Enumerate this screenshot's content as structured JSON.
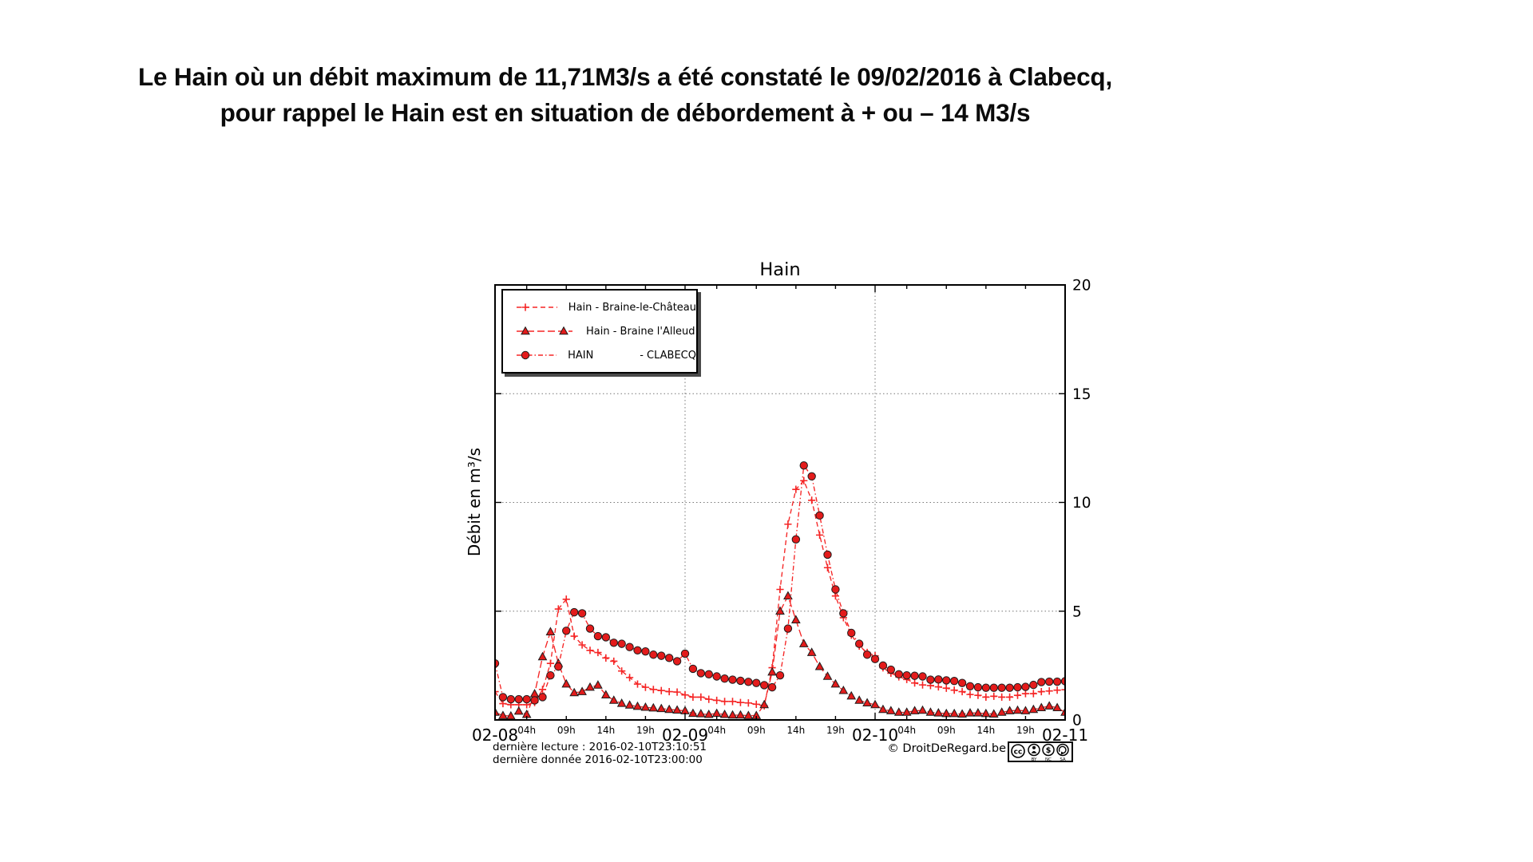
{
  "header": {
    "line1": "Le Hain où un débit maximum de 11,71M3/s a été constaté le 09/02/2016 à Clabecq,",
    "line2": "pour rappel le Hain est en situation de débordement à + ou – 14 M3/s"
  },
  "chart_data": {
    "type": "line",
    "title": "Hain",
    "ylabel": "Débit en m³/s",
    "ylim": [
      0,
      20
    ],
    "yticks": [
      0,
      5,
      10,
      15,
      20
    ],
    "ytick_labels": [
      "0",
      "5",
      "10",
      "15",
      "20"
    ],
    "ytick_side": "right",
    "grid": "dotted horizontal at 5/10/15, dotted vertical at day boundaries",
    "legend_position": "upper left",
    "x_start": "2016-02-08 00:00",
    "x_step_hours": 1,
    "xlim_hours": [
      0,
      72
    ],
    "day_labels": [
      "02-08",
      "02-09",
      "02-10",
      "02-11"
    ],
    "hour_labels": [
      "04h",
      "09h",
      "14h",
      "19h"
    ],
    "hour_label_offsets": [
      4,
      9,
      14,
      19
    ],
    "line_color": "#f52525",
    "marker_fill": "#e31b1b",
    "marker_edge": "#1c1c1c",
    "series": [
      {
        "name": "Hain - Braine-le-Château",
        "marker": "plus",
        "linestyle": "dashed",
        "values": [
          1.3,
          0.75,
          0.7,
          0.7,
          0.7,
          0.8,
          1.4,
          2.6,
          5.1,
          5.55,
          3.85,
          3.45,
          3.2,
          3.1,
          2.85,
          2.7,
          2.25,
          1.95,
          1.65,
          1.5,
          1.4,
          1.35,
          1.3,
          1.28,
          1.15,
          1.05,
          1.05,
          0.95,
          0.9,
          0.85,
          0.85,
          0.8,
          0.78,
          0.72,
          0.65,
          2.4,
          6.0,
          9.0,
          10.6,
          11.0,
          10.1,
          8.5,
          7.0,
          5.7,
          4.7,
          3.9,
          3.4,
          3.1,
          2.95,
          2.4,
          2.15,
          1.98,
          1.86,
          1.7,
          1.61,
          1.58,
          1.52,
          1.46,
          1.37,
          1.3,
          1.17,
          1.13,
          1.05,
          1.09,
          1.05,
          1.05,
          1.13,
          1.21,
          1.21,
          1.3,
          1.33,
          1.37,
          1.39
        ]
      },
      {
        "name": "Hain - Braine l'Alleud",
        "marker": "triangle",
        "linestyle": "longdash",
        "values": [
          0.35,
          0.2,
          0.18,
          0.4,
          0.25,
          1.2,
          2.9,
          4.05,
          2.6,
          1.65,
          1.25,
          1.3,
          1.5,
          1.6,
          1.15,
          0.9,
          0.76,
          0.68,
          0.62,
          0.58,
          0.55,
          0.52,
          0.48,
          0.45,
          0.42,
          0.3,
          0.28,
          0.25,
          0.3,
          0.25,
          0.22,
          0.22,
          0.2,
          0.2,
          0.7,
          2.2,
          5.0,
          5.7,
          4.6,
          3.5,
          3.1,
          2.45,
          2.0,
          1.65,
          1.35,
          1.1,
          0.9,
          0.78,
          0.7,
          0.48,
          0.42,
          0.35,
          0.35,
          0.42,
          0.44,
          0.35,
          0.32,
          0.29,
          0.29,
          0.27,
          0.32,
          0.32,
          0.29,
          0.27,
          0.35,
          0.42,
          0.44,
          0.42,
          0.48,
          0.56,
          0.64,
          0.56,
          0.35
        ]
      },
      {
        "name": "HAIN              - CLABECQ",
        "marker": "circle",
        "linestyle": "dashdot",
        "values": [
          2.6,
          1.05,
          0.95,
          0.95,
          0.95,
          0.9,
          1.05,
          2.05,
          2.45,
          4.1,
          4.95,
          4.9,
          4.2,
          3.85,
          3.8,
          3.55,
          3.5,
          3.35,
          3.2,
          3.15,
          3.0,
          2.95,
          2.85,
          2.7,
          3.05,
          2.35,
          2.15,
          2.1,
          2.0,
          1.9,
          1.85,
          1.8,
          1.75,
          1.7,
          1.6,
          1.5,
          2.05,
          4.2,
          8.3,
          11.7,
          11.2,
          9.4,
          7.6,
          6.0,
          4.9,
          4.0,
          3.5,
          3.0,
          2.8,
          2.5,
          2.31,
          2.1,
          2.05,
          2.03,
          2.0,
          1.85,
          1.86,
          1.82,
          1.79,
          1.7,
          1.55,
          1.5,
          1.48,
          1.48,
          1.48,
          1.48,
          1.5,
          1.52,
          1.61,
          1.74,
          1.76,
          1.76,
          1.78
        ]
      }
    ]
  },
  "footer": {
    "line1": "dernière lecture : 2016-02-10T23:10:51",
    "line2": "dernière donnée  2016-02-10T23:00:00",
    "copyright": "© DroitDeRegard.be",
    "cc_badge_labels": [
      "BY",
      "NC",
      "SA"
    ]
  }
}
